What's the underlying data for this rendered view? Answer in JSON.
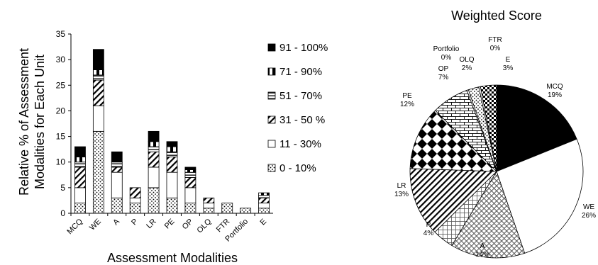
{
  "chart_data": [
    {
      "type": "bar",
      "stacked": true,
      "xlabel": "Assessment Modalities",
      "ylabel_line1": "Relative % of Assessment",
      "ylabel_line2": "Modalities for Each Unit",
      "categories": [
        "MCQ",
        "WE",
        "A",
        "P",
        "LR",
        "PE",
        "OP",
        "OLQ",
        "FTR",
        "Portfolio",
        "E"
      ],
      "yticks": [
        "0",
        "5",
        "10",
        "15",
        "20",
        "25",
        "30",
        "35"
      ],
      "ylim": [
        0,
        35
      ],
      "grid": false,
      "legend_position": "right",
      "legend_order": [
        "91 - 100%",
        "71 - 90%",
        "51 - 70%",
        "31 - 50 %",
        "11 - 30%",
        "0 - 10%"
      ],
      "series": [
        {
          "name": "0 - 10%",
          "pattern": "dots",
          "values": [
            2,
            16,
            3,
            2,
            5,
            3,
            2,
            1,
            2,
            1,
            1
          ]
        },
        {
          "name": "11 - 30%",
          "pattern": "white",
          "values": [
            3,
            5,
            5,
            1,
            4,
            5,
            3,
            1,
            0,
            0,
            1
          ]
        },
        {
          "name": "31 - 50 %",
          "pattern": "diagonal",
          "values": [
            4,
            5,
            1,
            2,
            3,
            3,
            2,
            1,
            0,
            0,
            1
          ]
        },
        {
          "name": "51 - 70%",
          "pattern": "hstripe",
          "values": [
            1,
            1,
            1,
            0,
            1,
            1,
            1,
            0,
            0,
            0,
            0.5
          ]
        },
        {
          "name": "71 - 90%",
          "pattern": "halfblack",
          "values": [
            1,
            1,
            0,
            0,
            1,
            1,
            0.5,
            0,
            0,
            0,
            0.5
          ]
        },
        {
          "name": "91 - 100%",
          "pattern": "black",
          "values": [
            2,
            4,
            2,
            0,
            2,
            1,
            0.5,
            0,
            0,
            0,
            0
          ]
        }
      ]
    },
    {
      "type": "pie",
      "title": "Weighted Score",
      "slices": [
        {
          "name": "MCQ",
          "label": "19%",
          "value": 19,
          "pattern": "black"
        },
        {
          "name": "WE",
          "label": "26%",
          "value": 26,
          "pattern": "white"
        },
        {
          "name": "A",
          "label": "14%",
          "value": 14,
          "pattern": "crosshatch"
        },
        {
          "name": "P",
          "label": "4%",
          "value": 4,
          "pattern": "grid"
        },
        {
          "name": "LR",
          "label": "13%",
          "value": 13,
          "pattern": "diagonal"
        },
        {
          "name": "PE",
          "label": "12%",
          "value": 12,
          "pattern": "diamond"
        },
        {
          "name": "OP",
          "label": "7%",
          "value": 7,
          "pattern": "brick"
        },
        {
          "name": "Portfolio",
          "label": "0%",
          "value": 0.3,
          "pattern": "white"
        },
        {
          "name": "OLQ",
          "label": "2%",
          "value": 2,
          "pattern": "dots"
        },
        {
          "name": "FTR",
          "label": "0%",
          "value": 0.3,
          "pattern": "white"
        },
        {
          "name": "E",
          "label": "3%",
          "value": 3,
          "pattern": "checker"
        }
      ]
    }
  ]
}
